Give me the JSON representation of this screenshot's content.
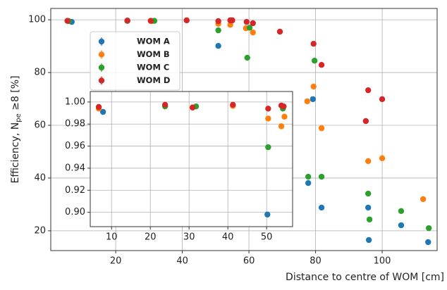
{
  "chart_data": [
    {
      "type": "scatter",
      "xlabel": "Distance to centre of WOM [cm]",
      "ylabel": [
        "Efficiency, N",
        "pe",
        " ≥8 [%]"
      ],
      "xlim": [
        0.5,
        116.5
      ],
      "ylim": [
        12.5,
        104.3
      ],
      "xticks": [
        20,
        40,
        60,
        80,
        100
      ],
      "yticks": [
        20,
        40,
        60,
        80,
        100
      ],
      "grid": true,
      "legend": "upper left",
      "series": [
        {
          "name": "WOM A",
          "color": "#1f77b4",
          "x": [
            6.8,
            50.8,
            59.5,
            79.2,
            77.8,
            81.8,
            95.8,
            96,
            105.7,
            113.8
          ],
          "values": [
            99.2,
            90.1,
            70.7,
            69.9,
            38.1,
            28.8,
            28.8,
            16.5,
            22.1,
            15.7
          ]
        },
        {
          "name": "WOM B",
          "color": "#ff7f0e",
          "x": [
            5.7,
            23.5,
            30.9,
            50.8,
            54.4,
            59.1,
            61.2,
            79.4,
            77.5,
            81.8,
            95.8,
            100,
            112.3
          ],
          "values": [
            99.5,
            99.6,
            99.5,
            98.5,
            98.1,
            96.8,
            95.2,
            74.7,
            69.1,
            58.9,
            46.4,
            47.5,
            32
          ]
        },
        {
          "name": "WOM C",
          "color": "#2ca02c",
          "x": [
            5.9,
            23.5,
            31.6,
            50.8,
            59.5,
            60.2,
            79.7,
            77.8,
            81.8,
            95.8,
            96.2,
            105.7,
            114
          ],
          "values": [
            99.5,
            99.6,
            99.6,
            96,
            85.6,
            97,
            84.5,
            40.5,
            40.5,
            34.1,
            24.3,
            27.5,
            21
          ]
        },
        {
          "name": "WOM D",
          "color": "#d62728",
          "x": [
            5.5,
            23.5,
            30.5,
            41.3,
            50.8,
            54.4,
            55,
            59.3,
            61.2,
            69.3,
            79.4,
            81.8,
            95.8,
            100,
            95.1
          ],
          "values": [
            99.6,
            99.7,
            99.6,
            99.8,
            99.5,
            99.8,
            99.8,
            99.2,
            98.7,
            95.5,
            90.9,
            82.9,
            73.3,
            69.9,
            61.6
          ]
        }
      ]
    },
    {
      "type": "scatter",
      "xlim": [
        4.5,
        56.7
      ],
      "ylim": [
        0.887,
        1.0095
      ],
      "xticks": [
        10,
        20,
        30,
        40,
        50
      ],
      "yticks": [
        {
          "value": 1,
          "label": "1.00"
        },
        0.98,
        0.96,
        0.94,
        0.92,
        {
          "value": 0.9,
          "label": "0.90"
        }
      ],
      "grid": true,
      "series": [
        {
          "color": "#1f77b4",
          "x": [
            7.8,
            50.2
          ],
          "values": [
            0.991,
            0.898
          ]
        },
        {
          "color": "#ff7f0e",
          "x": [
            6.7,
            23.8,
            30.9,
            41.3,
            50.4,
            53.8,
            54.6
          ],
          "values": [
            0.994,
            0.9965,
            0.995,
            0.9965,
            0.985,
            0.978,
            0.9867
          ]
        },
        {
          "color": "#2ca02c",
          "x": [
            23.8,
            31.8,
            50.4,
            54.2
          ],
          "values": [
            0.996,
            0.996,
            0.959,
            0.994
          ]
        },
        {
          "color": "#d62728",
          "x": [
            6.7,
            23.8,
            30.9,
            41.3,
            50.4,
            53.8,
            54.4
          ],
          "values": [
            0.9955,
            0.9975,
            0.995,
            0.9975,
            0.994,
            0.9968,
            0.996
          ]
        }
      ]
    }
  ]
}
